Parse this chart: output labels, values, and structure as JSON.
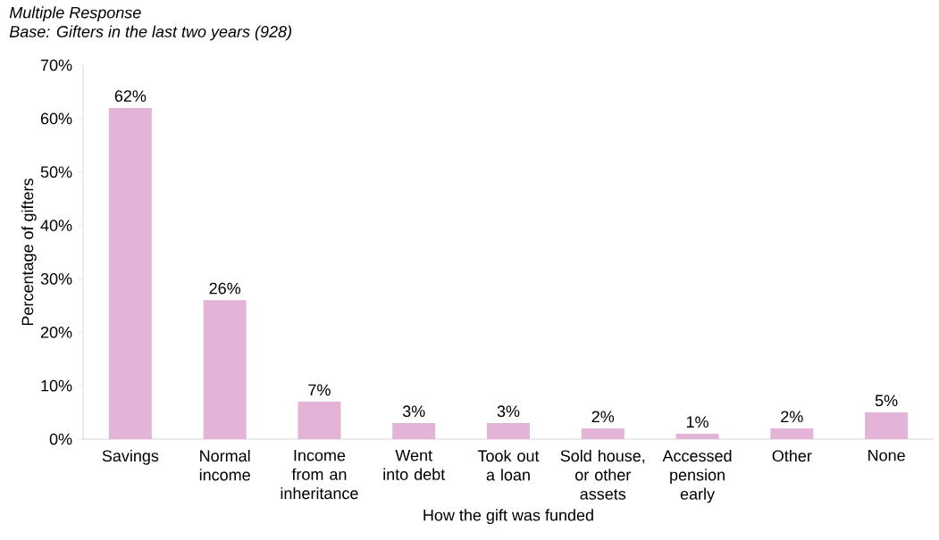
{
  "chart_data": {
    "type": "bar",
    "title": "Multiple Response",
    "subtitle": "Base: Gifters in the last two years (928)",
    "xlabel": "How the gift was funded",
    "ylabel": "Percentage of gifters",
    "categories": [
      "Savings",
      "Normal income",
      "Income from an inheritance",
      "Went into debt",
      "Took out a loan",
      "Sold house, or other assets",
      "Accessed pension early",
      "Other",
      "None"
    ],
    "values": [
      62,
      26,
      7,
      3,
      3,
      2,
      1,
      2,
      5
    ],
    "value_labels": [
      "62%",
      "26%",
      "7%",
      "3%",
      "3%",
      "2%",
      "1%",
      "2%",
      "5%"
    ],
    "color": "#e3b4d8",
    "ylim": [
      0,
      70
    ],
    "yticks": [
      {
        "value": 0,
        "label": "0%"
      },
      {
        "value": 10,
        "label": "10%"
      },
      {
        "value": 20,
        "label": "20%"
      },
      {
        "value": 30,
        "label": "30%"
      },
      {
        "value": 40,
        "label": "40%"
      },
      {
        "value": 50,
        "label": "50%"
      },
      {
        "value": 60,
        "label": "60%"
      },
      {
        "value": 70,
        "label": "70%"
      }
    ],
    "grid": false
  }
}
